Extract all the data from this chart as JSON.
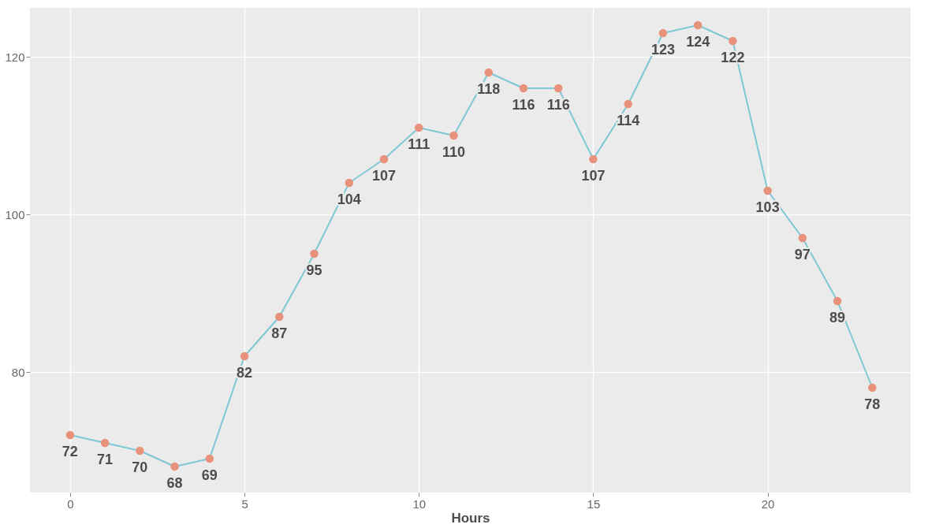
{
  "chart_data": {
    "type": "line",
    "xlabel": "Hours",
    "x": [
      0,
      1,
      2,
      3,
      4,
      5,
      6,
      7,
      8,
      9,
      10,
      11,
      12,
      13,
      14,
      15,
      16,
      17,
      18,
      19,
      20,
      21,
      22,
      23
    ],
    "series": [
      {
        "color": "#7ec8d3",
        "colors": [
          "#e8927c",
          "#e8927c",
          "#e8927c",
          "#e8927c",
          "#e8927c",
          "#e8927c",
          "#e8927c",
          "#e8927c",
          "#e8927c",
          "#e8927c",
          "#e8927c",
          "#e8927c",
          "#e8927c",
          "#e8927c",
          "#e8927c",
          "#e8927c",
          "#e8927c",
          "#e8927c",
          "#e8927c",
          "#e8927c",
          "#e8927c",
          "#e8927c",
          "#e8927c",
          "#e8927c"
        ],
        "values": [
          72,
          71,
          70,
          68,
          69,
          82,
          87,
          95,
          104,
          107,
          111,
          110,
          118,
          116,
          116,
          107,
          114,
          123,
          124,
          122,
          103,
          97,
          89,
          78
        ]
      }
    ],
    "data_labels": true,
    "marker": "circle",
    "grid": true,
    "xlim": [
      -1.15,
      24.1
    ],
    "xticks": [
      0,
      5,
      10,
      15,
      20
    ],
    "ylim": [
      64.7,
      126.2
    ],
    "yticks": [
      80,
      100,
      120
    ]
  }
}
